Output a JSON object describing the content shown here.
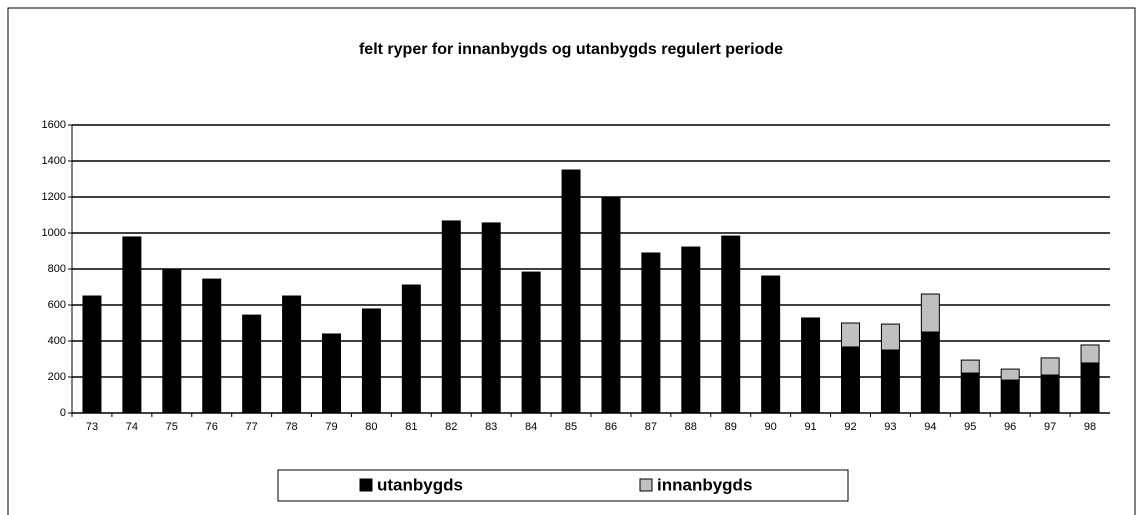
{
  "chart_data": {
    "type": "stacked-bar",
    "title": "felt ryper for innanbygds og utanbygds regulert periode",
    "categories": [
      "73",
      "74",
      "75",
      "76",
      "77",
      "78",
      "79",
      "80",
      "81",
      "82",
      "83",
      "84",
      "85",
      "86",
      "87",
      "88",
      "89",
      "90",
      "91",
      "92",
      "93",
      "94",
      "95",
      "96",
      "97",
      "98"
    ],
    "series": [
      {
        "name": "utanbygds",
        "color": "#000000",
        "values": [
          650,
          978,
          794,
          744,
          544,
          650,
          439,
          578,
          711,
          1067,
          1056,
          783,
          1350,
          1200,
          889,
          922,
          983,
          761,
          528,
          367,
          350,
          450,
          222,
          183,
          211,
          278
        ]
      },
      {
        "name": "innanbygds",
        "color": "#c0c0c0",
        "values": [
          0,
          0,
          0,
          0,
          0,
          0,
          0,
          0,
          0,
          0,
          0,
          0,
          0,
          0,
          0,
          0,
          0,
          0,
          0,
          133,
          144,
          211,
          72,
          61,
          95,
          100
        ]
      }
    ],
    "ylim": [
      0,
      1600
    ],
    "yticks": [
      0,
      200,
      400,
      600,
      800,
      1000,
      1200,
      1400,
      1600
    ],
    "grid": true,
    "legend": "bottom"
  }
}
